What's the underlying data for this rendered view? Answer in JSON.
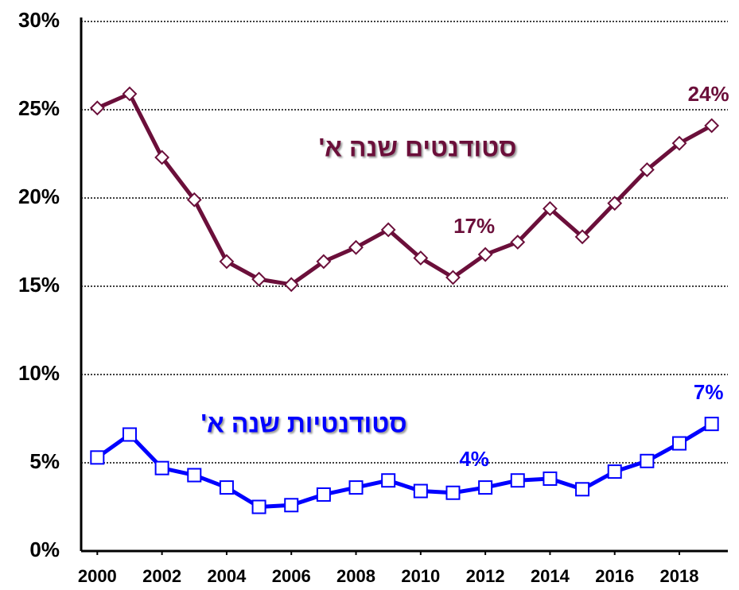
{
  "chart_data": {
    "type": "line",
    "x": [
      2000,
      2001,
      2002,
      2003,
      2004,
      2005,
      2006,
      2007,
      2008,
      2009,
      2010,
      2011,
      2012,
      2013,
      2014,
      2015,
      2016,
      2017,
      2018,
      2019
    ],
    "series": [
      {
        "name": "סטודנטים שנה א'",
        "color": "#6b0f3a",
        "marker": "diamond",
        "values": [
          25.1,
          25.9,
          22.3,
          19.9,
          16.4,
          15.4,
          15.1,
          16.4,
          17.2,
          18.2,
          16.6,
          15.5,
          16.8,
          17.5,
          19.4,
          17.8,
          19.7,
          21.6,
          23.1,
          24.1
        ],
        "value_labels": [
          null,
          null,
          null,
          null,
          null,
          null,
          null,
          null,
          null,
          null,
          null,
          null,
          "17%",
          null,
          null,
          null,
          null,
          null,
          null,
          "24%"
        ]
      },
      {
        "name": "סטודנטיות שנה א'",
        "color": "#0000ff",
        "marker": "square",
        "values": [
          5.3,
          6.6,
          4.7,
          4.3,
          3.6,
          2.5,
          2.6,
          3.2,
          3.6,
          4.0,
          3.4,
          3.3,
          3.6,
          4.0,
          4.1,
          3.5,
          4.5,
          5.1,
          6.1,
          7.2
        ],
        "value_labels": [
          null,
          null,
          null,
          null,
          null,
          null,
          null,
          null,
          null,
          null,
          null,
          null,
          "4%",
          null,
          null,
          null,
          null,
          null,
          null,
          "7%"
        ]
      }
    ],
    "xlim": [
      1999.5,
      2019.5
    ],
    "xticks": [
      2000,
      2002,
      2004,
      2006,
      2008,
      2010,
      2012,
      2014,
      2016,
      2018
    ],
    "ylim": [
      0,
      30
    ],
    "yticks": [
      {
        "value": 0,
        "label": "0%"
      },
      {
        "value": 5,
        "label": "5%"
      },
      {
        "value": 10,
        "label": "10%"
      },
      {
        "value": 15,
        "label": "15%"
      },
      {
        "value": 20,
        "label": "20%"
      },
      {
        "value": 25,
        "label": "25%"
      },
      {
        "value": 30,
        "label": "30%"
      }
    ],
    "grid": true
  }
}
